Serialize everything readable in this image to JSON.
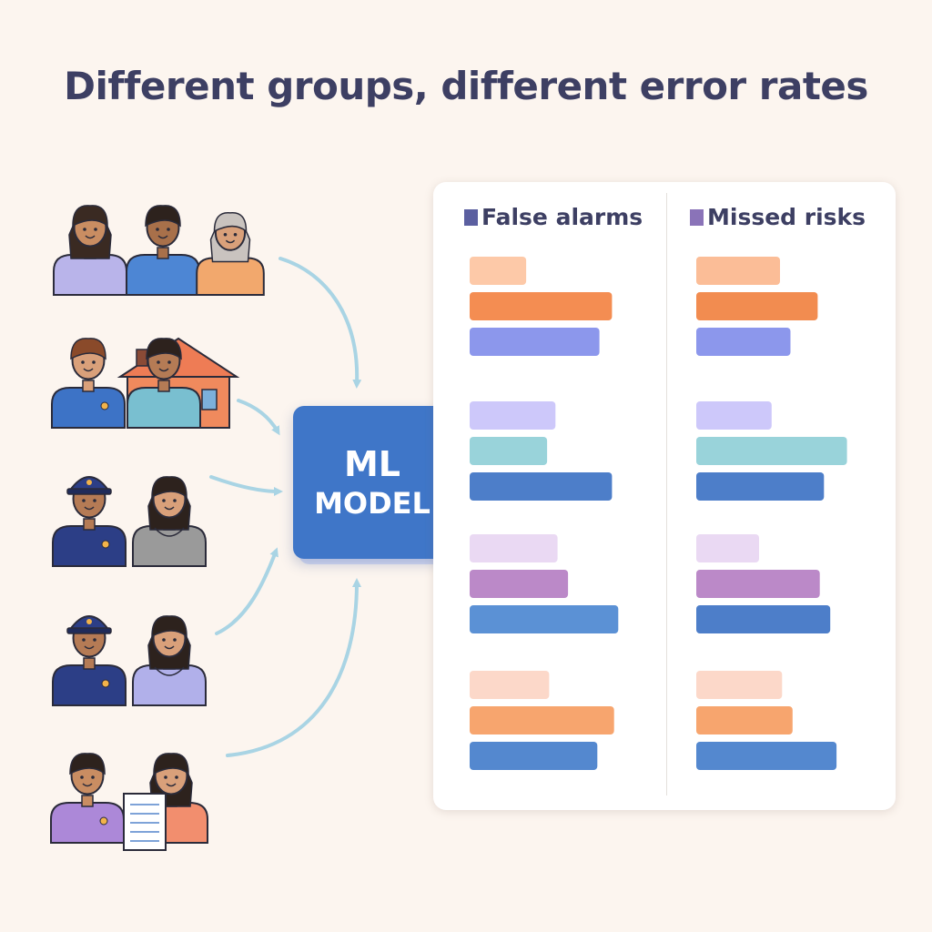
{
  "title": "Different groups, different error rates",
  "model": {
    "line1": "ML",
    "line2": "MODEL"
  },
  "legend": {
    "false_alarms": {
      "label": "False alarms",
      "color": "#5b5fa0"
    },
    "missed_risks": {
      "label": "Missed risks",
      "color": "#8a73b8"
    }
  },
  "groups": [
    {
      "icons": [
        "woman-icon",
        "man-icon",
        "elder-woman-icon"
      ]
    },
    {
      "icons": [
        "worker-icon",
        "house-icon",
        "man-icon"
      ]
    },
    {
      "icons": [
        "officer-icon",
        "hoodie-person-icon"
      ]
    },
    {
      "icons": [
        "officer-icon",
        "hoodie-person-icon"
      ]
    },
    {
      "icons": [
        "man-icon",
        "document-icon",
        "woman-icon"
      ]
    }
  ],
  "chart_data": {
    "type": "bar",
    "orientation": "horizontal",
    "title": "",
    "xlabel": "",
    "ylabel": "",
    "axes_shown": false,
    "panels": [
      {
        "name": "False alarms",
        "clusters": [
          {
            "values": [
              0.27,
              0.68,
              0.62
            ],
            "colors": [
              "#fdc9a8",
              "#f48d52",
              "#8c97ec"
            ]
          },
          {
            "values": [
              0.41,
              0.37,
              0.68
            ],
            "colors": [
              "#cdc8fa",
              "#99d3da",
              "#4d7ec9"
            ]
          },
          {
            "values": [
              0.42,
              0.47,
              0.71
            ],
            "colors": [
              "#ead9f3",
              "#bb89c8",
              "#5b91d5"
            ]
          },
          {
            "values": [
              0.38,
              0.69,
              0.61
            ],
            "colors": [
              "#fcd8c9",
              "#f7a56e",
              "#5488cf"
            ]
          }
        ]
      },
      {
        "name": "Missed risks",
        "clusters": [
          {
            "values": [
              0.4,
              0.58,
              0.45
            ],
            "colors": [
              "#fbbd97",
              "#f28c50",
              "#8c97ec"
            ]
          },
          {
            "values": [
              0.36,
              0.72,
              0.61
            ],
            "colors": [
              "#cdc8fa",
              "#99d3da",
              "#4d7ec9"
            ]
          },
          {
            "values": [
              0.3,
              0.59,
              0.64
            ],
            "colors": [
              "#ead9f3",
              "#bb89c8",
              "#4d7ec9"
            ]
          },
          {
            "values": [
              0.41,
              0.46,
              0.67
            ],
            "colors": [
              "#fcd8c9",
              "#f7a56e",
              "#5488cf"
            ]
          }
        ]
      }
    ]
  }
}
